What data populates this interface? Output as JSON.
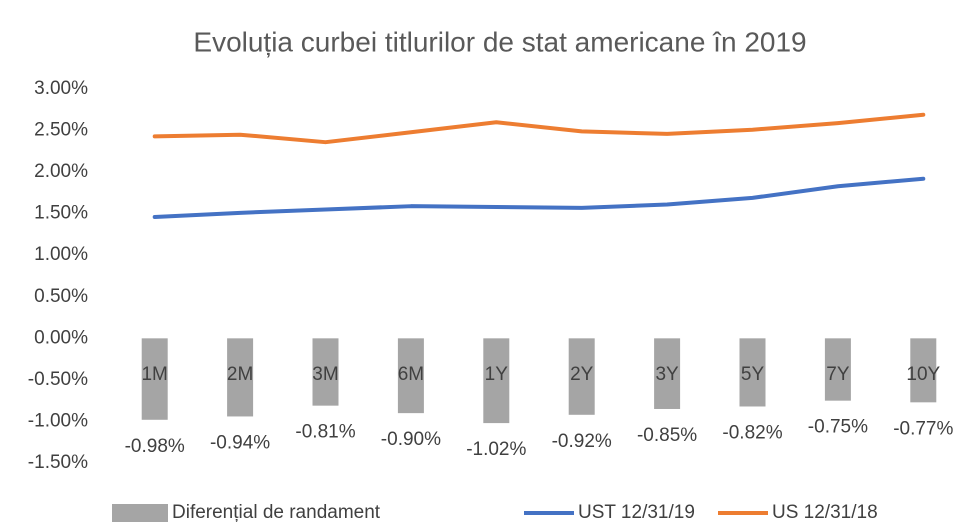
{
  "chart_data": {
    "type": "bar-line",
    "title": "Evoluția curbei titlurilor de stat americane în 2019",
    "categories": [
      "1M",
      "2M",
      "3M",
      "6M",
      "1Y",
      "2Y",
      "3Y",
      "5Y",
      "7Y",
      "10Y"
    ],
    "series": [
      {
        "name": "Diferențial de randament",
        "type": "bar",
        "color": "#a5a5a5",
        "values": [
          -0.98,
          -0.94,
          -0.81,
          -0.9,
          -1.02,
          -0.92,
          -0.85,
          -0.82,
          -0.75,
          -0.77
        ],
        "value_labels": [
          "-0.98%",
          "-0.94%",
          "-0.81%",
          "-0.90%",
          "-1.02%",
          "-0.92%",
          "-0.85%",
          "-0.82%",
          "-0.75%",
          "-0.77%"
        ]
      },
      {
        "name": "UST 12/31/19",
        "type": "line",
        "color": "#4472c4",
        "values": [
          1.46,
          1.51,
          1.55,
          1.59,
          1.58,
          1.57,
          1.61,
          1.69,
          1.83,
          1.92
        ]
      },
      {
        "name": "US 12/31/18",
        "type": "line",
        "color": "#ed7d31",
        "values": [
          2.43,
          2.45,
          2.36,
          2.48,
          2.6,
          2.49,
          2.46,
          2.51,
          2.59,
          2.69
        ]
      }
    ],
    "ylim": [
      -1.5,
      3.0
    ],
    "yticks": [
      {
        "value": 3.0,
        "label": "3.00%"
      },
      {
        "value": 2.5,
        "label": "2.50%"
      },
      {
        "value": 2.0,
        "label": "2.00%"
      },
      {
        "value": 1.5,
        "label": "1.50%"
      },
      {
        "value": 1.0,
        "label": "1.00%"
      },
      {
        "value": 0.5,
        "label": "0.50%"
      },
      {
        "value": 0.0,
        "label": "0.00%"
      },
      {
        "value": -0.5,
        "label": "-0.50%"
      },
      {
        "value": -1.0,
        "label": "-1.00%"
      },
      {
        "value": -1.5,
        "label": "-1.50%"
      }
    ],
    "grid": false,
    "legend": "bottom"
  }
}
